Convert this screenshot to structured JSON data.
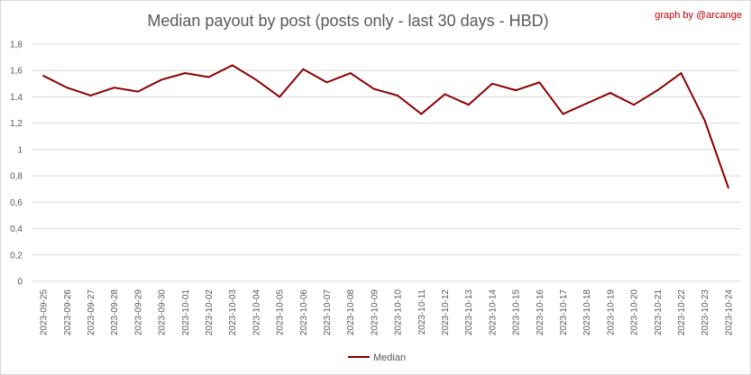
{
  "chart_data": {
    "type": "line",
    "title": "Median payout by post (posts only - last 30 days - HBD)",
    "credit": "graph by @arcange",
    "xlabel": "",
    "ylabel": "",
    "ylim": [
      0,
      1.8
    ],
    "yticks": [
      "0",
      "0,2",
      "0,4",
      "0,6",
      "0,8",
      "1",
      "1,2",
      "1,4",
      "1,6",
      "1,8"
    ],
    "grid": true,
    "legend_position": "bottom",
    "x": [
      "2023-09-25",
      "2023-09-26",
      "2023-09-27",
      "2023-09-28",
      "2023-09-29",
      "2023-09-30",
      "2023-10-01",
      "2023-10-02",
      "2023-10-03",
      "2023-10-04",
      "2023-10-05",
      "2023-10-06",
      "2023-10-07",
      "2023-10-08",
      "2023-10-09",
      "2023-10-10",
      "2023-10-11",
      "2023-10-12",
      "2023-10-13",
      "2023-10-14",
      "2023-10-15",
      "2023-10-16",
      "2023-10-17",
      "2023-10-18",
      "2023-10-19",
      "2023-10-20",
      "2023-10-21",
      "2023-10-22",
      "2023-10-23",
      "2023-10-24"
    ],
    "series": [
      {
        "name": "Median",
        "color": "#8b0000",
        "values": [
          1.56,
          1.47,
          1.41,
          1.47,
          1.44,
          1.53,
          1.58,
          1.55,
          1.64,
          1.53,
          1.4,
          1.61,
          1.51,
          1.58,
          1.46,
          1.41,
          1.27,
          1.42,
          1.34,
          1.5,
          1.45,
          1.51,
          1.27,
          1.35,
          1.43,
          1.34,
          1.45,
          1.58,
          1.22,
          0.71
        ]
      }
    ]
  }
}
